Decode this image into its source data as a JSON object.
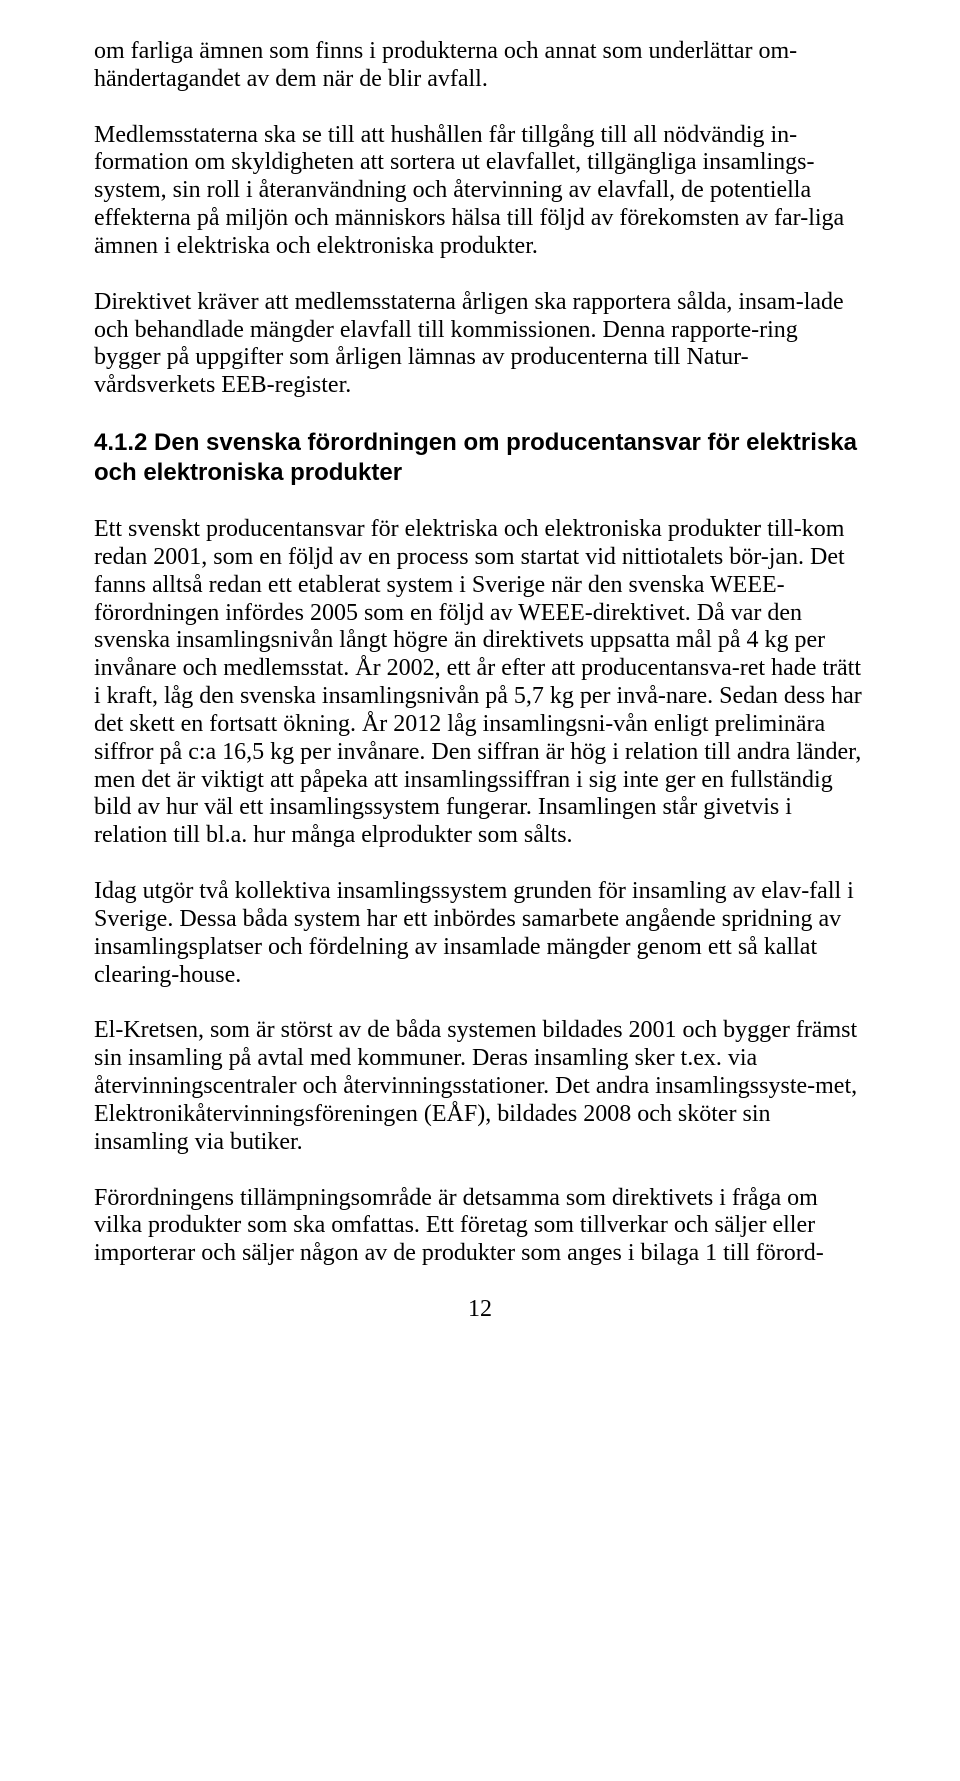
{
  "paragraphs": {
    "p1": "om farliga ämnen som finns i produkterna och annat som underlättar om-händertagandet av dem när de blir avfall.",
    "p2": "Medlemsstaterna ska se till att hushållen får tillgång till all nödvändig in-formation om skyldigheten att sortera ut elavfallet, tillgängliga insamlings-system, sin roll i återanvändning och återvinning av elavfall, de potentiella effekterna på miljön och människors hälsa till följd av förekomsten av far-liga ämnen i elektriska och elektroniska produkter.",
    "p3": "Direktivet kräver att medlemsstaterna årligen ska rapportera sålda, insam-lade och behandlade mängder elavfall till kommissionen. Denna rapporte-ring bygger på uppgifter som årligen lämnas av producenterna till Natur-vårdsverkets EEB-register.",
    "p4": "Ett svenskt producentansvar för elektriska och elektroniska produkter till-kom redan 2001, som en följd av en process som startat vid nittiotalets bör-jan. Det fanns alltså redan ett etablerat system i Sverige när den svenska WEEE-förordningen infördes 2005 som en följd av WEEE-direktivet. Då var den svenska insamlingsnivån långt högre än direktivets uppsatta mål på 4 kg per invånare och medlemsstat. År 2002, ett år efter att producentansva-ret hade trätt i kraft, låg den svenska insamlingsnivån på 5,7 kg per invå-nare. Sedan dess har det skett en fortsatt ökning. År 2012 låg insamlingsni-vån enligt preliminära siffror på c:a 16,5 kg per invånare. Den siffran är hög i relation till andra länder, men det är viktigt att påpeka att insamlingssiffran i sig inte ger en fullständig bild av hur väl ett insamlingssystem fungerar. Insamlingen står givetvis i relation till bl.a. hur många elprodukter som sålts.",
    "p5": "Idag utgör två kollektiva insamlingssystem grunden för insamling av elav-fall i Sverige. Dessa båda system har ett inbördes samarbete angående spridning av insamlingsplatser och fördelning av insamlade mängder genom ett så kallat clearing-house.",
    "p6": "El-Kretsen, som är störst av de båda systemen bildades 2001 och bygger främst sin insamling på avtal med kommuner. Deras insamling sker t.ex. via återvinningscentraler och återvinningsstationer. Det andra insamlingssyste-met, Elektronikåtervinningsföreningen (EÅF), bildades 2008 och sköter sin insamling via butiker.",
    "p7": "Förordningens tillämpningsområde är detsamma som direktivets i fråga om vilka produkter som ska omfattas. Ett företag som tillverkar och säljer eller importerar och säljer någon av de produkter som anges i bilaga 1 till förord-"
  },
  "heading": "4.1.2 Den svenska förordningen om producentansvar för elektriska och elektroniska produkter",
  "page_number": "12"
}
